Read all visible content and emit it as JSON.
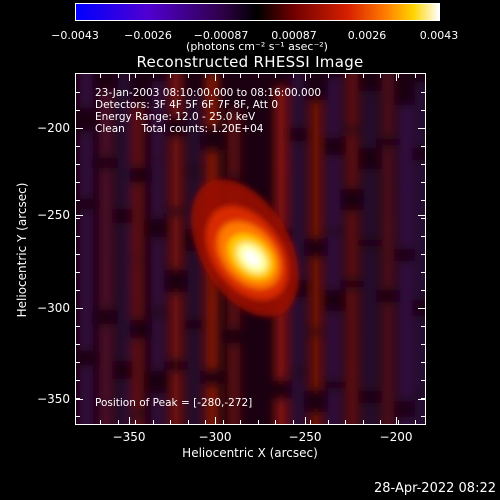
{
  "colorbar": {
    "tick_labels": [
      "−0.0043",
      "−0.0026",
      "−0.00087",
      "0.00087",
      "0.0026",
      "0.0043"
    ],
    "tick_values": [
      -0.0043,
      -0.0026,
      -0.00087,
      0.00087,
      0.0026,
      0.0043
    ],
    "range": [
      -0.0043,
      0.0043
    ],
    "unit_label": "(photons cm⁻² s⁻¹ asec⁻²)",
    "colormap": [
      "#0000ff",
      "#5a00c8",
      "#3c005a",
      "#000000",
      "#6e0000",
      "#c81400",
      "#ff6e00",
      "#ffd200",
      "#ffffff"
    ]
  },
  "title": "Reconstructed RHESSI Image",
  "annotations": {
    "line1": "23-Jan-2003 08:10:00.000 to 08:16:00.000",
    "line2": "Detectors: 3F 4F 5F 6F 7F 8F, Att 0",
    "line3": "Energy Range: 12.0 - 25.0 keV",
    "line4": "Clean     Total counts: 1.20E+04",
    "peak": "Position of Peak = [-280,-272]"
  },
  "axes": {
    "xlabel": "Heliocentric X (arcsec)",
    "ylabel": "Heliocentric Y (arcsec)",
    "xticks": [
      "−350",
      "−300",
      "−250",
      "−200"
    ],
    "xtick_values": [
      -350,
      -300,
      -250,
      -200
    ],
    "yticks": [
      "−200",
      "−250",
      "−300",
      "−350"
    ],
    "ytick_values": [
      -200,
      -250,
      -300,
      -350
    ],
    "xlim": [
      -380,
      -185
    ],
    "ylim": [
      -365,
      -170
    ]
  },
  "image": {
    "peak_position": [
      -280,
      -272
    ]
  },
  "datestamp": "28-Apr-2022 08:22"
}
